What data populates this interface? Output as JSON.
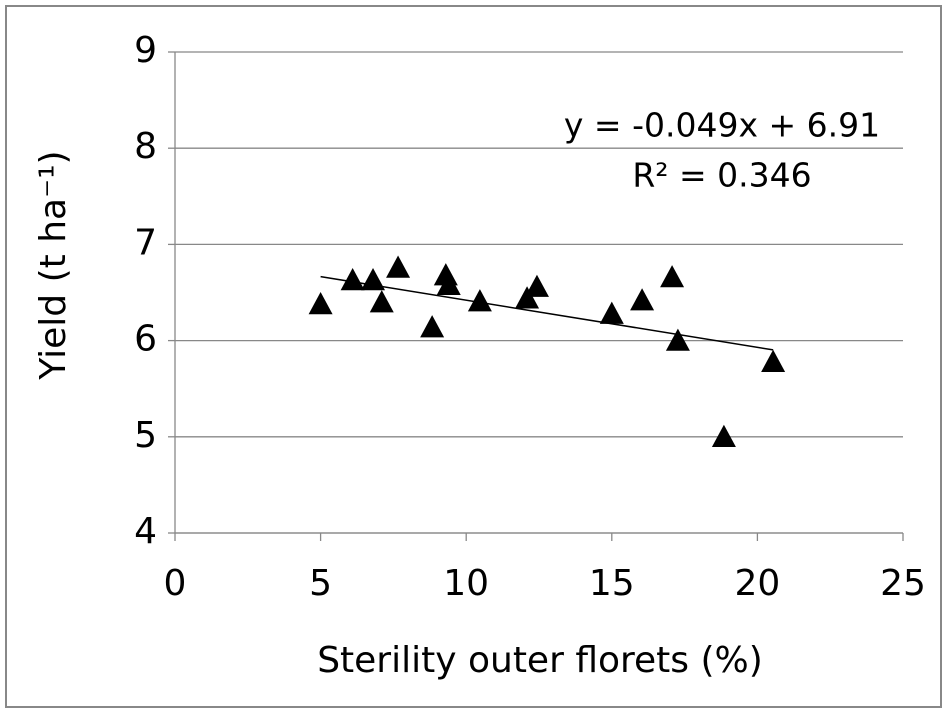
{
  "chart_data": {
    "type": "scatter",
    "x_label": "Sterility outer florets (%)",
    "y_label": "Yield (t ha⁻¹)",
    "x": [
      5.0,
      6.1,
      6.8,
      7.1,
      7.66,
      8.83,
      9.3,
      9.4,
      10.47,
      12.09,
      12.43,
      15.0,
      16.04,
      17.07,
      17.27,
      18.85,
      20.54
    ],
    "values": [
      6.38,
      6.63,
      6.63,
      6.4,
      6.76,
      6.14,
      6.68,
      6.58,
      6.41,
      6.44,
      6.56,
      6.28,
      6.42,
      6.66,
      6.0,
      5.0,
      5.78
    ],
    "color": "#000000",
    "xlim": [
      0,
      25
    ],
    "xticks": [
      0,
      5,
      10,
      15,
      20,
      25
    ],
    "ylim": [
      4,
      9
    ],
    "yticks": [
      4,
      5,
      6,
      7,
      8,
      9
    ],
    "grid": true,
    "trendline": {
      "slope": -0.049,
      "intercept": 6.91,
      "equation": "y = -0.049x + 6.91",
      "r_squared": "R² = 0.346"
    }
  }
}
